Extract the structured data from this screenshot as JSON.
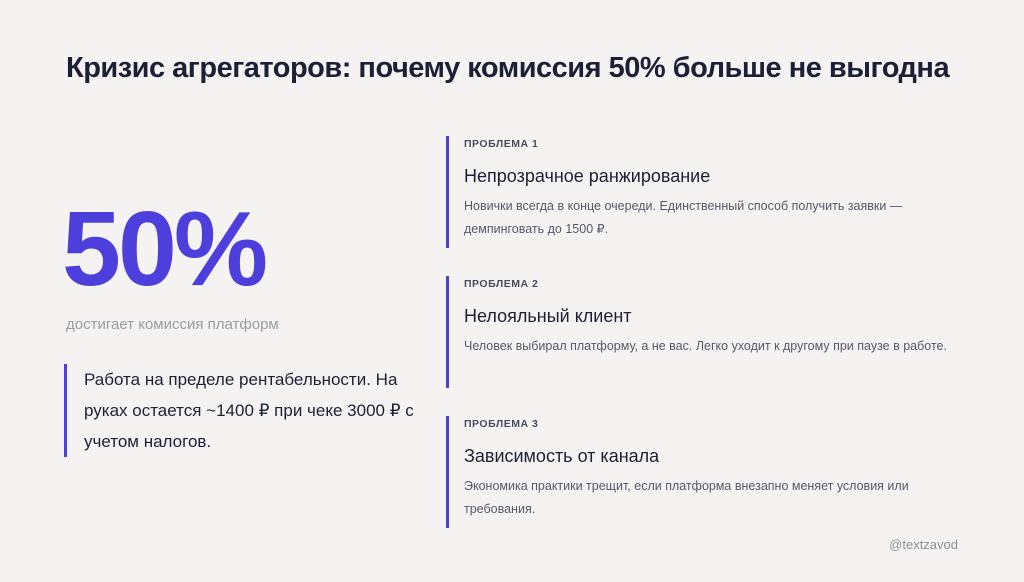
{
  "title": "Кризис агрегаторов: почему комиссия 50% больше не выгодна",
  "stat": {
    "value": "50%",
    "caption": "достигает комиссия платформ"
  },
  "quote": "Работа на пределе рентабельности. На руках остается ~1400 ₽ при чеке 3000 ₽ с учетом налогов.",
  "problems": [
    {
      "tag": "ПРОБЛЕМА 1",
      "title": "Непрозрачное ранжирование",
      "description": "Новички всегда в конце очереди. Единственный способ получить заявки — демпинговать до 1500 ₽."
    },
    {
      "tag": "ПРОБЛЕМА 2",
      "title": "Нелояльный клиент",
      "description": "Человек выбирал платформу, а не вас. Легко уходит к другому при паузе в работе."
    },
    {
      "tag": "ПРОБЛЕМА 3",
      "title": "Зависимость от канала",
      "description": "Экономика практики трещит, если платформа внезапно меняет условия или требования."
    }
  ],
  "handle": "@textzavod",
  "colors": {
    "accent": "#4c3fdc",
    "background": "#f5f3f2",
    "text": "#1c2036",
    "muted": "#9a9aa4"
  }
}
